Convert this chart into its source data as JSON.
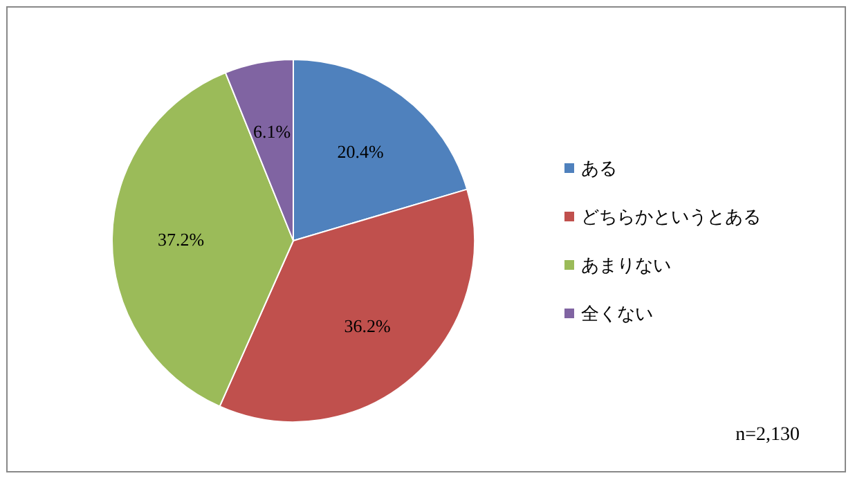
{
  "chart_data": {
    "type": "pie",
    "categories": [
      "ある",
      "どちらかというとある",
      "あまりない",
      "全くない"
    ],
    "values": [
      20.4,
      36.2,
      37.2,
      6.1
    ],
    "colors": [
      "#4f81bd",
      "#c0504d",
      "#9bbb59",
      "#8064a2"
    ],
    "value_labels": [
      "20.4%",
      "36.2%",
      "37.2%",
      "6.1%"
    ],
    "legend": "right",
    "annotations": [
      "n=2,130"
    ]
  }
}
